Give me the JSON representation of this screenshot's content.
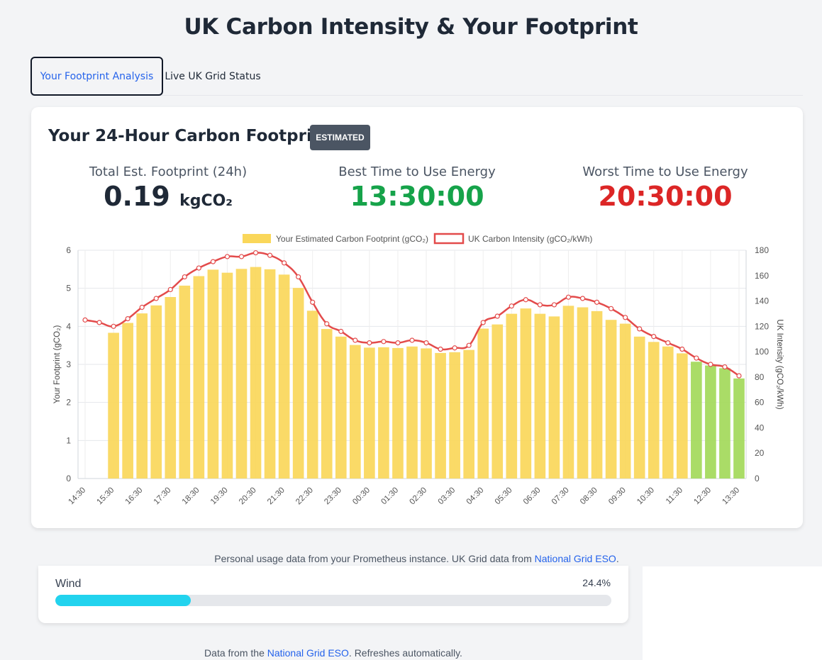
{
  "page": {
    "title": "UK Carbon Intensity & Your Footprint"
  },
  "tabs": [
    {
      "label": "Your Footprint Analysis",
      "active": true
    },
    {
      "label": "Live UK Grid Status",
      "active": false
    }
  ],
  "footprint_card": {
    "title": "Your 24-Hour Carbon Footprint",
    "badge": "ESTIMATED",
    "stats": {
      "total": {
        "label": "Total Est. Footprint (24h)",
        "value": "0.19",
        "unit": "kgCO₂"
      },
      "best": {
        "label": "Best Time to Use Energy",
        "value": "13:30:00",
        "color": "#16a34a"
      },
      "worst": {
        "label": "Worst Time to Use Energy",
        "value": "20:30:00",
        "color": "#dc2626"
      }
    }
  },
  "chart_data": {
    "type": "bar",
    "legend": {
      "bar_label": "Your Estimated Carbon Footprint (gCO₂)",
      "line_label": "UK Carbon Intensity (gCO₂/kWh)",
      "placement": "top"
    },
    "y_left": {
      "label": "Your Footprint (gCO₂)",
      "min": 0,
      "max": 6,
      "ticks": [
        "0",
        "1",
        "2",
        "3",
        "4",
        "5",
        "6"
      ]
    },
    "y_right": {
      "label": "UK Intensity (gCO₂/kWh)",
      "min": 0,
      "max": 180,
      "ticks": [
        "0",
        "20",
        "40",
        "60",
        "80",
        "100",
        "120",
        "140",
        "160",
        "180"
      ]
    },
    "x_labels": [
      "14:30",
      "15:30",
      "16:30",
      "17:30",
      "18:30",
      "19:30",
      "20:30",
      "21:30",
      "22:30",
      "23:30",
      "00:30",
      "01:30",
      "02:30",
      "03:30",
      "04:30",
      "05:30",
      "06:30",
      "07:30",
      "08:30",
      "09:30",
      "10:30",
      "11:30",
      "12:30",
      "13:30"
    ],
    "grid": true,
    "colors": {
      "bar": "#fad75a",
      "bar_low": "#a3d95a",
      "line": "#e34b4b"
    },
    "bars": [
      null,
      null,
      3.83,
      4.09,
      4.34,
      4.55,
      4.77,
      5.07,
      5.32,
      5.49,
      5.41,
      5.51,
      5.56,
      5.5,
      5.36,
      5.01,
      4.41,
      3.93,
      3.73,
      3.51,
      3.44,
      3.45,
      3.43,
      3.47,
      3.42,
      3.3,
      3.32,
      3.38,
      3.94,
      4.05,
      4.33,
      4.47,
      4.33,
      4.26,
      4.54,
      4.5,
      4.4,
      4.17,
      4.07,
      3.73,
      3.59,
      3.47,
      3.29,
      3.07,
      2.97,
      2.9,
      2.63
    ],
    "bar_is_low": [
      false,
      false,
      false,
      false,
      false,
      false,
      false,
      false,
      false,
      false,
      false,
      false,
      false,
      false,
      false,
      false,
      false,
      false,
      false,
      false,
      false,
      false,
      false,
      false,
      false,
      false,
      false,
      false,
      false,
      false,
      false,
      false,
      false,
      false,
      false,
      false,
      false,
      false,
      false,
      false,
      false,
      false,
      false,
      true,
      true,
      true,
      true
    ],
    "intensity": [
      125,
      123,
      120,
      126,
      135,
      142,
      149,
      159,
      166,
      171,
      175,
      175,
      178,
      176,
      170,
      159,
      139,
      122,
      116,
      109,
      107,
      108,
      107,
      109,
      107,
      102,
      103,
      105,
      123,
      128,
      136,
      141,
      137,
      137,
      143,
      142,
      139,
      134,
      127,
      118,
      112,
      107,
      102,
      95,
      90,
      88,
      81
    ]
  },
  "footer_note": {
    "text": "Personal usage data from your Prometheus instance. UK Grid data from ",
    "link": "National Grid ESO",
    "end": "."
  },
  "generation_mix": {
    "label": "Wind",
    "percent_text": "24.4%",
    "percent": 24.4,
    "color": "#22d3ee"
  },
  "bottom_note": {
    "text_before": "Data from the ",
    "link": "National Grid ESO",
    "text_after": ". Refreshes automatically."
  }
}
